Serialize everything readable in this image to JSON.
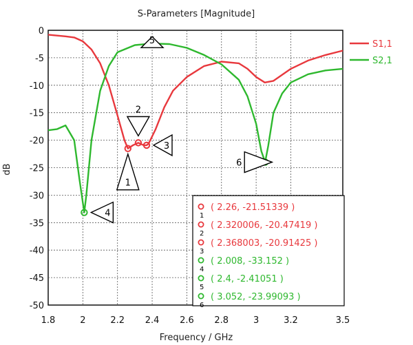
{
  "chart_data": {
    "type": "line",
    "title": "S-Parameters [Magnitude]",
    "xlabel": "Frequency / GHz",
    "ylabel": "dB",
    "xlim": [
      1.8,
      3.5
    ],
    "ylim": [
      -50,
      0
    ],
    "xticks": [
      1.8,
      2,
      2.2,
      2.4,
      2.6,
      2.8,
      3,
      3.2,
      3.5
    ],
    "yticks": [
      0,
      -5,
      -10,
      -15,
      -20,
      -25,
      -30,
      -35,
      -40,
      -45,
      -50
    ],
    "grid": true,
    "legend_position": "right",
    "series": [
      {
        "name": "S1,1",
        "color": "#e8383d",
        "points": [
          [
            1.8,
            -0.8
          ],
          [
            1.9,
            -1.1
          ],
          [
            1.95,
            -1.3
          ],
          [
            2.0,
            -2.0
          ],
          [
            2.05,
            -3.5
          ],
          [
            2.1,
            -6.0
          ],
          [
            2.15,
            -10.0
          ],
          [
            2.2,
            -15.5
          ],
          [
            2.24,
            -20.0
          ],
          [
            2.26,
            -21.5
          ],
          [
            2.29,
            -20.9
          ],
          [
            2.32,
            -20.47
          ],
          [
            2.35,
            -20.9
          ],
          [
            2.368,
            -20.91
          ],
          [
            2.38,
            -20.6
          ],
          [
            2.42,
            -18.0
          ],
          [
            2.47,
            -14.0
          ],
          [
            2.52,
            -11.0
          ],
          [
            2.6,
            -8.5
          ],
          [
            2.7,
            -6.5
          ],
          [
            2.8,
            -5.7
          ],
          [
            2.9,
            -6.0
          ],
          [
            2.95,
            -7.0
          ],
          [
            3.0,
            -8.5
          ],
          [
            3.05,
            -9.5
          ],
          [
            3.1,
            -9.2
          ],
          [
            3.2,
            -7.0
          ],
          [
            3.3,
            -5.5
          ],
          [
            3.4,
            -4.5
          ],
          [
            3.5,
            -3.7
          ]
        ]
      },
      {
        "name": "S2,1",
        "color": "#2eb82e",
        "points": [
          [
            1.8,
            -18.2
          ],
          [
            1.85,
            -18.0
          ],
          [
            1.9,
            -17.3
          ],
          [
            1.95,
            -20.0
          ],
          [
            1.98,
            -27.0
          ],
          [
            2.008,
            -33.15
          ],
          [
            2.02,
            -30.0
          ],
          [
            2.05,
            -20.0
          ],
          [
            2.1,
            -11.0
          ],
          [
            2.15,
            -6.5
          ],
          [
            2.2,
            -4.0
          ],
          [
            2.3,
            -2.7
          ],
          [
            2.4,
            -2.41
          ],
          [
            2.5,
            -2.5
          ],
          [
            2.6,
            -3.2
          ],
          [
            2.7,
            -4.5
          ],
          [
            2.8,
            -6.2
          ],
          [
            2.9,
            -9.0
          ],
          [
            2.95,
            -12.0
          ],
          [
            3.0,
            -17.0
          ],
          [
            3.03,
            -22.0
          ],
          [
            3.052,
            -23.99
          ],
          [
            3.07,
            -21.0
          ],
          [
            3.1,
            -15.0
          ],
          [
            3.15,
            -11.5
          ],
          [
            3.2,
            -9.5
          ],
          [
            3.3,
            -8.0
          ],
          [
            3.4,
            -7.3
          ],
          [
            3.5,
            -7.0
          ]
        ]
      }
    ],
    "markers": [
      {
        "id": "1",
        "x": 2.26,
        "y": -21.51339,
        "series": 0,
        "label": "( 2.26, -21.51339 )"
      },
      {
        "id": "2",
        "x": 2.320006,
        "y": -20.47419,
        "series": 0,
        "label": "( 2.320006, -20.47419 )"
      },
      {
        "id": "3",
        "x": 2.368003,
        "y": -20.91425,
        "series": 0,
        "label": "( 2.368003, -20.91425 )"
      },
      {
        "id": "4",
        "x": 2.008,
        "y": -33.152,
        "series": 1,
        "label": "( 2.008, -33.152 )"
      },
      {
        "id": "5",
        "x": 2.4,
        "y": -2.41051,
        "series": 1,
        "label": "( 2.4, -2.41051 )"
      },
      {
        "id": "6",
        "x": 3.052,
        "y": -23.99093,
        "series": 1,
        "label": "( 3.052, -23.99093 )"
      }
    ]
  }
}
